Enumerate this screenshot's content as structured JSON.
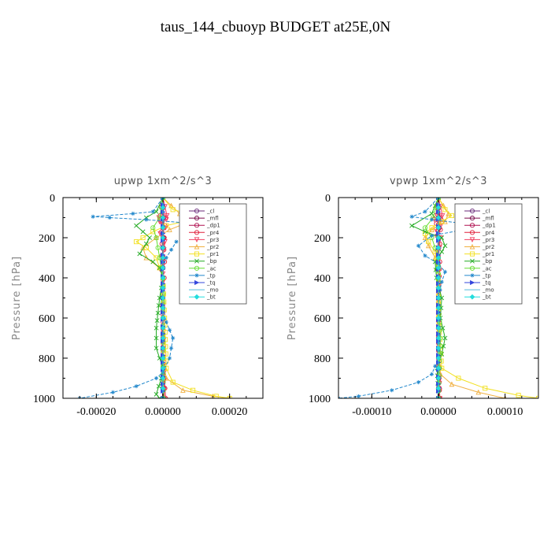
{
  "title": "taus_144_cbuoyp  BUDGET at25E,0N",
  "chart_data": [
    {
      "type": "line",
      "title": "upwp   1xm^2/s^3",
      "ylabel": "Pressure [hPa]",
      "xlabel": "",
      "xlim": [
        -0.0003,
        0.0003
      ],
      "ylim": [
        1000,
        0
      ],
      "xticks": [
        "-0.00020",
        "0.00000",
        "0.00020"
      ],
      "xtick_values": [
        -0.0002,
        0,
        0.0002
      ],
      "yticks": [
        "0",
        "200",
        "400",
        "600",
        "800",
        "1000"
      ],
      "ytick_values": [
        0,
        200,
        400,
        600,
        800,
        1000
      ],
      "grid": false,
      "legend_position": "top-right",
      "series": [
        {
          "name": "_cl",
          "color": "#6a2a7a",
          "marker": "o",
          "x": [
            0,
            0,
            0,
            0,
            0,
            0,
            0,
            0,
            0,
            0,
            0
          ],
          "y": [
            0,
            100,
            200,
            300,
            400,
            500,
            600,
            700,
            800,
            900,
            1000
          ]
        },
        {
          "name": "_mfl",
          "color": "#7a0a4a",
          "marker": "o",
          "x": [
            0,
            0,
            0,
            0,
            0,
            0,
            0,
            0,
            0,
            0,
            0
          ],
          "y": [
            0,
            100,
            200,
            300,
            400,
            500,
            600,
            700,
            800,
            900,
            1000
          ]
        },
        {
          "name": "_dp1",
          "color": "#b01050",
          "marker": "o",
          "x": [
            0,
            3e-06,
            2e-06,
            1e-06,
            0,
            0,
            0,
            0,
            0,
            2e-06,
            4e-06
          ],
          "y": [
            0,
            100,
            200,
            300,
            400,
            500,
            600,
            700,
            800,
            900,
            1000
          ]
        },
        {
          "name": "_pr4",
          "color": "#e0203a",
          "marker": "o",
          "x": [
            0,
            -8e-06,
            8e-06,
            -6e-06,
            6e-06,
            -4e-06,
            4e-06,
            -3e-06,
            3e-06,
            -3e-06,
            5e-06,
            -4e-06,
            4e-06,
            -2e-06,
            2e-06,
            4e-06,
            8e-06
          ],
          "y": [
            0,
            90,
            100,
            120,
            140,
            170,
            200,
            230,
            260,
            290,
            320,
            360,
            400,
            500,
            700,
            900,
            1000
          ]
        },
        {
          "name": "_pr3",
          "color": "#f04060",
          "marker": "v",
          "x": [
            0,
            1.2e-05,
            -1.2e-05,
            1e-05,
            -1e-05,
            8e-06,
            -8e-06,
            6e-06,
            0,
            0,
            0,
            4e-06
          ],
          "y": [
            0,
            90,
            100,
            110,
            120,
            150,
            180,
            220,
            300,
            500,
            800,
            1000
          ]
        },
        {
          "name": "_pr2",
          "color": "#f0b040",
          "marker": "^",
          "x": [
            0,
            5e-05,
            8e-05,
            2e-05,
            -2e-05,
            -6e-05,
            -5e-05,
            -1e-05,
            0,
            0,
            0,
            1e-05,
            6e-05,
            0.00015,
            0.0002
          ],
          "y": [
            0,
            80,
            120,
            160,
            200,
            250,
            300,
            350,
            400,
            600,
            800,
            900,
            960,
            990,
            1000
          ]
        },
        {
          "name": "_pr1",
          "color": "#f2e020",
          "marker": "s",
          "x": [
            0,
            3e-05,
            0.0001,
            6e-05,
            1e-05,
            -3e-05,
            -6e-05,
            -8e-05,
            -5e-05,
            -2e-05,
            -1e-05,
            0,
            5e-06,
            1e-05,
            3e-05,
            9e-05,
            0.00016,
            0.0002
          ],
          "y": [
            0,
            60,
            90,
            120,
            140,
            170,
            200,
            220,
            250,
            300,
            350,
            400,
            600,
            850,
            920,
            960,
            990,
            1000
          ]
        },
        {
          "name": "_bp",
          "color": "#22aa22",
          "marker": "x",
          "x": [
            0,
            -2e-05,
            -5e-05,
            -8e-05,
            -6e-05,
            -4e-05,
            -5e-05,
            -7e-05,
            -3e-05,
            -1e-05,
            0,
            -1e-05,
            -2e-05,
            -2e-05,
            -1e-05,
            0,
            -5e-06,
            -2e-05,
            -1e-05
          ],
          "y": [
            0,
            70,
            100,
            140,
            170,
            200,
            230,
            280,
            320,
            350,
            400,
            500,
            650,
            750,
            800,
            850,
            900,
            980,
            1000
          ]
        },
        {
          "name": "_ac",
          "color": "#66dd33",
          "marker": "o",
          "x": [
            0,
            -1e-05,
            -3e-05,
            -2e-05,
            -1e-05,
            0,
            0,
            0,
            2e-06
          ],
          "y": [
            0,
            100,
            150,
            200,
            300,
            400,
            600,
            800,
            1000
          ]
        },
        {
          "name": "_tp",
          "color": "#2288cc",
          "marker": "*",
          "x": [
            0,
            -3e-05,
            -9e-05,
            -0.00021,
            -0.00016,
            -5e-05,
            6e-05,
            0.00011,
            0.00023,
            9e-05,
            4e-05,
            1e-05,
            0,
            0,
            0,
            1e-05,
            3e-05,
            2e-05,
            0,
            -2e-05,
            -8e-05,
            -0.00015,
            -0.00025
          ],
          "y": [
            0,
            70,
            80,
            95,
            100,
            110,
            125,
            140,
            165,
            185,
            220,
            300,
            350,
            450,
            550,
            620,
            700,
            800,
            870,
            900,
            940,
            970,
            1000
          ]
        },
        {
          "name": "_tq",
          "color": "#3344dd",
          "marker": ">",
          "x": [
            0,
            0,
            0,
            0,
            0
          ],
          "y": [
            0,
            250,
            500,
            750,
            1000
          ]
        },
        {
          "name": "_mo",
          "color": "#55bbdd",
          "marker": "-",
          "x": [
            0,
            0,
            0,
            0,
            0
          ],
          "y": [
            0,
            250,
            500,
            750,
            1000
          ]
        },
        {
          "name": "_bt",
          "color": "#22dddd",
          "marker": "D",
          "x": [
            0,
            0,
            0,
            0,
            0,
            0,
            0,
            0,
            0,
            0,
            0
          ],
          "y": [
            0,
            100,
            200,
            300,
            400,
            500,
            600,
            700,
            800,
            900,
            1000
          ]
        }
      ]
    },
    {
      "type": "line",
      "title": "vpwp   1xm^2/s^3",
      "ylabel": "Pressure [hPa]",
      "xlabel": "",
      "xlim": [
        -0.00015,
        0.00015
      ],
      "ylim": [
        1000,
        0
      ],
      "xticks": [
        "-0.00010",
        "0.00000",
        "0.00010"
      ],
      "xtick_values": [
        -0.0001,
        0,
        0.0001
      ],
      "yticks": [
        "0",
        "200",
        "400",
        "600",
        "800",
        "1000"
      ],
      "ytick_values": [
        0,
        200,
        400,
        600,
        800,
        1000
      ],
      "grid": false,
      "legend_position": "top-right",
      "series": [
        {
          "name": "_cl",
          "color": "#6a2a7a",
          "marker": "o",
          "x": [
            0,
            0,
            0,
            0,
            0,
            0,
            0,
            0,
            0,
            0,
            0
          ],
          "y": [
            0,
            100,
            200,
            300,
            400,
            500,
            600,
            700,
            800,
            900,
            1000
          ]
        },
        {
          "name": "_mfl",
          "color": "#7a0a4a",
          "marker": "o",
          "x": [
            0,
            0,
            0,
            0,
            0,
            0,
            0,
            0,
            0,
            0,
            0
          ],
          "y": [
            0,
            100,
            200,
            300,
            400,
            500,
            600,
            700,
            800,
            900,
            1000
          ]
        },
        {
          "name": "_dp1",
          "color": "#b01050",
          "marker": "o",
          "x": [
            0,
            2e-06,
            1e-06,
            0,
            0,
            0,
            0,
            0,
            0,
            1e-06,
            2e-06
          ],
          "y": [
            0,
            100,
            200,
            300,
            400,
            500,
            600,
            700,
            800,
            900,
            1000
          ]
        },
        {
          "name": "_pr4",
          "color": "#e0203a",
          "marker": "o",
          "x": [
            0,
            -4e-06,
            4e-06,
            -3e-06,
            3e-06,
            -2e-06,
            2e-06,
            -2e-06,
            2e-06,
            0,
            0,
            2e-06
          ],
          "y": [
            0,
            90,
            110,
            130,
            160,
            190,
            230,
            270,
            320,
            500,
            800,
            1000
          ]
        },
        {
          "name": "_pr3",
          "color": "#f04060",
          "marker": "v",
          "x": [
            0,
            6e-06,
            -6e-06,
            5e-06,
            -4e-06,
            3e-06,
            0,
            0,
            2e-06
          ],
          "y": [
            0,
            90,
            110,
            130,
            160,
            200,
            300,
            700,
            1000
          ]
        },
        {
          "name": "_pr2",
          "color": "#f0b040",
          "marker": "^",
          "x": [
            0,
            1.5e-05,
            1e-05,
            -1e-05,
            -2e-05,
            -1.5e-05,
            -5e-06,
            0,
            0,
            3e-06,
            2e-05,
            6e-05,
            0.0001
          ],
          "y": [
            0,
            80,
            120,
            160,
            200,
            240,
            300,
            400,
            700,
            880,
            930,
            970,
            1000
          ]
        },
        {
          "name": "_pr1",
          "color": "#f2e020",
          "marker": "s",
          "x": [
            0,
            1e-05,
            2e-05,
            5e-06,
            -1e-05,
            -2e-05,
            -1.5e-05,
            -5e-06,
            0,
            0,
            5e-06,
            3e-05,
            7e-05,
            0.00012,
            0.00015
          ],
          "y": [
            0,
            60,
            90,
            120,
            150,
            180,
            220,
            270,
            350,
            600,
            850,
            900,
            950,
            985,
            1000
          ]
        },
        {
          "name": "_bp",
          "color": "#22aa22",
          "marker": "x",
          "x": [
            0,
            -1e-05,
            -4e-05,
            -2e-05,
            5e-06,
            1e-05,
            5e-06,
            -5e-06,
            -3e-06,
            5e-06,
            3e-06,
            1e-05,
            5e-06,
            -2e-06,
            0
          ],
          "y": [
            0,
            80,
            140,
            170,
            200,
            240,
            270,
            320,
            400,
            500,
            600,
            700,
            780,
            850,
            1000
          ]
        },
        {
          "name": "_ac",
          "color": "#66dd33",
          "marker": "o",
          "x": [
            0,
            -8e-06,
            -2e-05,
            -1e-05,
            0,
            0,
            3e-06,
            0
          ],
          "y": [
            0,
            100,
            150,
            200,
            300,
            500,
            700,
            1000
          ]
        },
        {
          "name": "_tp",
          "color": "#2288cc",
          "marker": "*",
          "x": [
            0,
            -2e-05,
            -4e-05,
            -1e-05,
            4e-05,
            6e-05,
            3e-05,
            -1e-05,
            -3e-05,
            -2e-05,
            0,
            1e-05,
            5e-06,
            0,
            0,
            -1e-05,
            -3e-05,
            -7e-05,
            -0.00012,
            -0.00015
          ],
          "y": [
            0,
            70,
            95,
            110,
            130,
            145,
            165,
            190,
            240,
            290,
            330,
            370,
            420,
            500,
            800,
            880,
            920,
            960,
            990,
            1000
          ]
        },
        {
          "name": "_tq",
          "color": "#3344dd",
          "marker": ">",
          "x": [
            0,
            0,
            0,
            0,
            0
          ],
          "y": [
            0,
            250,
            500,
            750,
            1000
          ]
        },
        {
          "name": "_mo",
          "color": "#55bbdd",
          "marker": "-",
          "x": [
            0,
            0,
            0,
            0,
            0
          ],
          "y": [
            0,
            250,
            500,
            750,
            1000
          ]
        },
        {
          "name": "_bt",
          "color": "#22dddd",
          "marker": "D",
          "x": [
            0,
            0,
            0,
            0,
            0,
            0,
            0,
            0,
            0,
            0,
            0
          ],
          "y": [
            0,
            100,
            200,
            300,
            400,
            500,
            600,
            700,
            800,
            900,
            1000
          ]
        }
      ]
    }
  ]
}
